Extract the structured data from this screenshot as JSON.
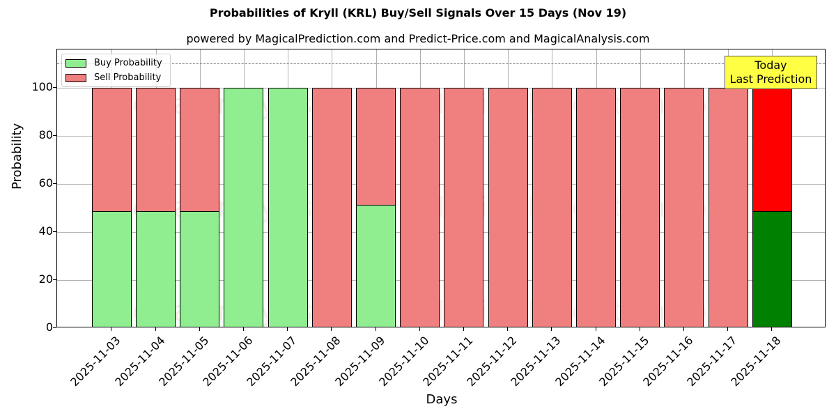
{
  "chart_data": {
    "type": "bar",
    "stacked": true,
    "title": "Probabilities of Kryll (KRL) Buy/Sell Signals Over 15 Days (Nov 19)",
    "subtitle": "powered by MagicalPrediction.com and Predict-Price.com and MagicalAnalysis.com",
    "xlabel": "Days",
    "ylabel": "Probability",
    "ylim": [
      0,
      115.8
    ],
    "yticks": [
      0,
      20,
      40,
      60,
      80,
      100
    ],
    "grid": true,
    "legend_position": "upper left",
    "categories": [
      "2025-11-03",
      "2025-11-04",
      "2025-11-05",
      "2025-11-06",
      "2025-11-07",
      "2025-11-08",
      "2025-11-09",
      "2025-11-10",
      "2025-11-11",
      "2025-11-12",
      "2025-11-13",
      "2025-11-14",
      "2025-11-15",
      "2025-11-16",
      "2025-11-17",
      "2025-11-18"
    ],
    "series": [
      {
        "name": "Buy Probability",
        "color": "#90ee90",
        "values": [
          48.7,
          48.7,
          48.7,
          100,
          100,
          0,
          51.2,
          0,
          0,
          0,
          0,
          0,
          0,
          0,
          0,
          48.7
        ]
      },
      {
        "name": "Sell Probability",
        "color": "#f08080",
        "values": [
          51.3,
          51.3,
          51.3,
          0,
          0,
          100,
          48.8,
          100,
          100,
          100,
          100,
          100,
          100,
          100,
          100,
          51.3
        ]
      }
    ],
    "highlight": {
      "index": 15,
      "buy_color": "#008000",
      "sell_color": "#ff0000"
    },
    "reference_line": {
      "y": 110,
      "style": "dashed",
      "color": "#808080"
    },
    "annotation": {
      "line1": "Today",
      "line2": "Last Prediction",
      "background": "#ffff44"
    },
    "watermarks": [
      "MagicalAnalysis.com",
      "MagicalPrediction.com"
    ]
  }
}
